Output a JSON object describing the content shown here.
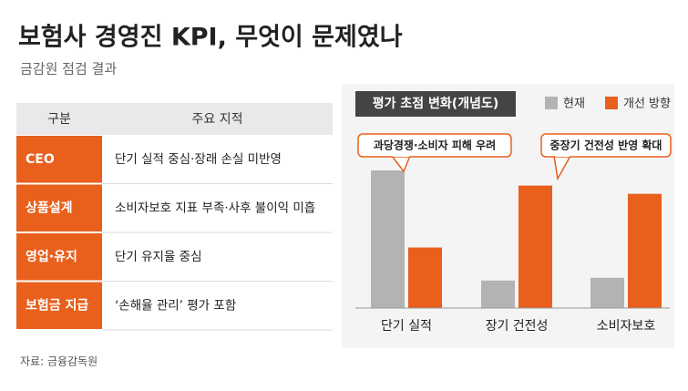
{
  "header": {
    "title": "보험사 경영진 KPI, 무엇이 문제였나",
    "subtitle": "금감원 점검 결과"
  },
  "table": {
    "header": [
      "구분",
      "주요 지적"
    ],
    "rows": [
      [
        "CEO",
        "단기 실적 중심·장래 손실 미반영"
      ],
      [
        "상품설계",
        "소비자보호 지표 부족·사후 불이익 미흡"
      ],
      [
        "영업·유지",
        "단기 유지율 중심"
      ],
      [
        "보험금 지급",
        "‘손해율 관리’ 평가 포함"
      ]
    ]
  },
  "chart_data": {
    "type": "bar",
    "title": "평가 초점 변화(개념도)",
    "categories": [
      "단기 실적",
      "장기 건전성",
      "소비자보호"
    ],
    "series": [
      {
        "name": "현재",
        "color": "#b3b3b3",
        "values": [
          100,
          20,
          22
        ]
      },
      {
        "name": "개선 방향",
        "color": "#e8601c",
        "values": [
          44,
          89,
          83
        ]
      }
    ],
    "annotations": [
      "과당경쟁·소비자 피해 우려",
      "중장기 건전성 반영 확대"
    ]
  },
  "source": "자료: 금융감독원"
}
